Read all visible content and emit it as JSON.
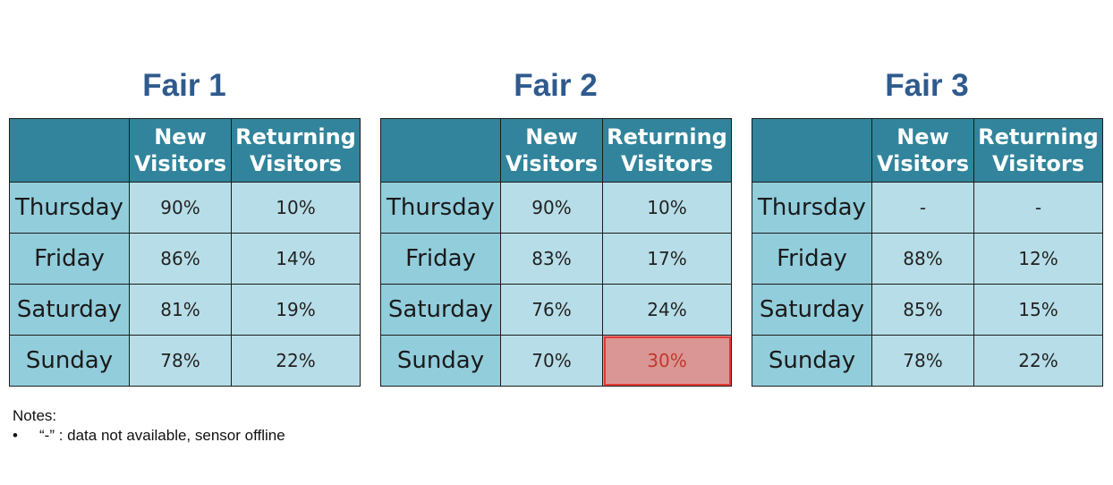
{
  "columns": {
    "new": "New Visitors",
    "returning": "Returning Visitors"
  },
  "fairs": [
    {
      "title": "Fair 1",
      "rows": [
        {
          "day": "Thursday",
          "new": "90%",
          "returning": "10%"
        },
        {
          "day": "Friday",
          "new": "86%",
          "returning": "14%"
        },
        {
          "day": "Saturday",
          "new": "81%",
          "returning": "19%"
        },
        {
          "day": "Sunday",
          "new": "78%",
          "returning": "22%"
        }
      ]
    },
    {
      "title": "Fair 2",
      "rows": [
        {
          "day": "Thursday",
          "new": "90%",
          "returning": "10%"
        },
        {
          "day": "Friday",
          "new": "83%",
          "returning": "17%"
        },
        {
          "day": "Saturday",
          "new": "76%",
          "returning": "24%"
        },
        {
          "day": "Sunday",
          "new": "70%",
          "returning": "30%"
        }
      ]
    },
    {
      "title": "Fair 3",
      "rows": [
        {
          "day": "Thursday",
          "new": "-",
          "returning": "-"
        },
        {
          "day": "Friday",
          "new": "88%",
          "returning": "12%"
        },
        {
          "day": "Saturday",
          "new": "85%",
          "returning": "15%"
        },
        {
          "day": "Sunday",
          "new": "78%",
          "returning": "22%"
        }
      ]
    }
  ],
  "highlight": {
    "fair": 1,
    "row": 3,
    "column": "returning",
    "color": "#da9694",
    "border_color": "#e53935"
  },
  "colors": {
    "title": "#2f5a8e",
    "header_bg": "#31849b",
    "day_bg": "#92cddc",
    "cell_bg": "#b7dee8"
  },
  "notes": {
    "heading": "Notes:",
    "bullet_symbol": "•",
    "items": [
      "“-” : data not available, sensor offline"
    ]
  }
}
